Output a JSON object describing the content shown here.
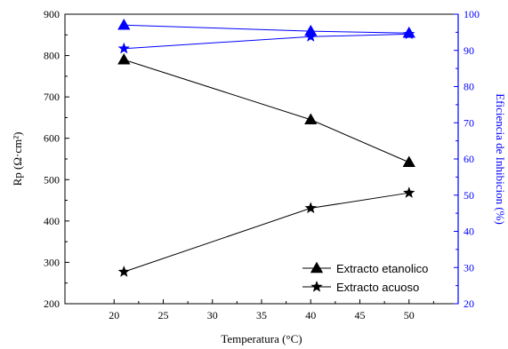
{
  "colors": {
    "primary_axis": "#000000",
    "secondary_axis": "#0000ff",
    "efficiency_series": "#0000ff",
    "rp_series": "#000000"
  },
  "chart_data": {
    "type": "line",
    "title": "",
    "xlabel": "Temperatura (°C)",
    "ylabel": "Rp (Ω·cm²)",
    "ylabel_right": "Eficiencia de Inhibicion (%)",
    "xlim": [
      15,
      55
    ],
    "ylim": [
      200,
      900
    ],
    "ylim_right": [
      20,
      100
    ],
    "x_ticks": [
      "20",
      "25",
      "30",
      "35",
      "40",
      "45",
      "50"
    ],
    "y_ticks": [
      "200",
      "300",
      "400",
      "500",
      "600",
      "700",
      "800",
      "900"
    ],
    "y_ticks_right": [
      "20",
      "30",
      "40",
      "50",
      "60",
      "70",
      "80",
      "90",
      "100"
    ],
    "grid": false,
    "legend_position": "bottom-right",
    "x": [
      21,
      40,
      50
    ],
    "series": [
      {
        "name": "Extracto etanolico",
        "axis": "left",
        "marker": "triangle",
        "color": "#000000",
        "values": [
          790,
          645,
          542
        ]
      },
      {
        "name": "Extracto acuoso",
        "axis": "left",
        "marker": "star",
        "color": "#000000",
        "values": [
          277,
          431,
          468
        ]
      },
      {
        "axis": "right",
        "marker": "triangle",
        "color": "#0000ff",
        "values": [
          97,
          95.3,
          94.8
        ]
      },
      {
        "axis": "right",
        "marker": "star",
        "color": "#0000ff",
        "values": [
          90.5,
          93.8,
          94.5
        ]
      }
    ]
  }
}
